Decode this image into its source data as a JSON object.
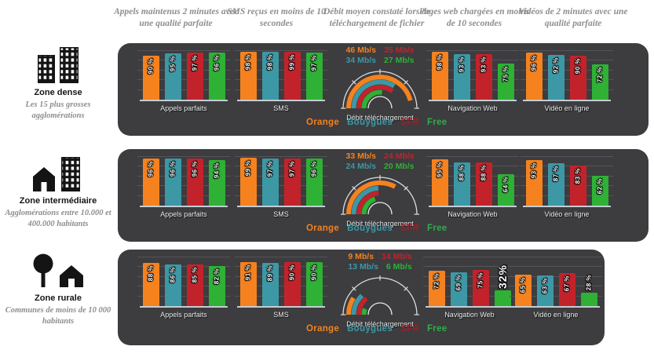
{
  "colors": {
    "orange": "#F5821E",
    "bouygues_teal": "#3D98A6",
    "sfr_red": "#C2232B",
    "free_green": "#2EB135",
    "sfr_legend": "#A51D24",
    "panel_bg": "#3D3C3F",
    "header_text": "#8E8E8E",
    "grid_line": "#54545A",
    "axis_line": "#C3CDD5",
    "label_text": "#E8EBED"
  },
  "operators": [
    "Orange",
    "Bouygues",
    "SFR",
    "Free"
  ],
  "column_headers": [
    "Appels maintenus 2 minutes avec une qualité parfaite",
    "SMS reçus en moins de 10 secondes",
    "Débit moyen constaté lors de téléchargement de fichier",
    "Pages web chargées en moins de 10 secondes",
    "Vidéos de 2 minutes avec une qualité parfaite"
  ],
  "legend": {
    "items": [
      {
        "label": "Orange",
        "color": "#F5821E"
      },
      {
        "label": "Bouygues",
        "color": "#3D98A6"
      },
      {
        "label": "SFR",
        "color": "#A51D24"
      },
      {
        "label": "Free",
        "color": "#2FAE49"
      }
    ]
  },
  "rows": [
    {
      "zone": {
        "title": "Zone dense",
        "subtitle": "Les 15 plus grosses agglomérations",
        "icon": "city-buildings-icon"
      },
      "appels": {
        "label": "Appels parfaits",
        "bars": [
          {
            "v": 90,
            "t": "90 %"
          },
          {
            "v": 95,
            "t": "95 %"
          },
          {
            "v": 97,
            "t": "97 %"
          },
          {
            "v": 96,
            "t": "96 %"
          }
        ]
      },
      "sms": {
        "label": "SMS",
        "bars": [
          {
            "v": 98,
            "t": "98 %"
          },
          {
            "v": 98,
            "t": "98 %"
          },
          {
            "v": 99,
            "t": "99 %"
          },
          {
            "v": 97,
            "t": "97 %"
          }
        ]
      },
      "debit": {
        "label": "Débit téléchargement",
        "speeds": [
          {
            "operator": "Orange",
            "mbps": 46,
            "t": "46 Mb/s"
          },
          {
            "operator": "Bouygues",
            "mbps": 34,
            "t": "34 Mb/s"
          },
          {
            "operator": "SFR",
            "mbps": 35,
            "t": "35 Mb/s"
          },
          {
            "operator": "Free",
            "mbps": 27,
            "t": "27 Mb/s"
          }
        ]
      },
      "nav": {
        "label": "Navigation Web",
        "bars": [
          {
            "v": 98,
            "t": "98 %"
          },
          {
            "v": 93,
            "t": "93 %"
          },
          {
            "v": 93,
            "t": "93 %"
          },
          {
            "v": 75,
            "t": "75 %"
          }
        ]
      },
      "video": {
        "label": "Vidéo en ligne",
        "bars": [
          {
            "v": 96,
            "t": "96 %"
          },
          {
            "v": 92,
            "t": "92 %"
          },
          {
            "v": 90,
            "t": "90 %"
          },
          {
            "v": 72,
            "t": "72 %"
          }
        ]
      }
    },
    {
      "zone": {
        "title": "Zone intermédiaire",
        "subtitle": "Agglomérations entre 10.000 et 400.000 habitants",
        "icon": "house-and-building-icon"
      },
      "appels": {
        "label": "Appels parfaits",
        "bars": [
          {
            "v": 96,
            "t": "96 %"
          },
          {
            "v": 96,
            "t": "96 %"
          },
          {
            "v": 96,
            "t": "96 %"
          },
          {
            "v": 94,
            "t": "94 %"
          }
        ]
      },
      "sms": {
        "label": "SMS",
        "bars": [
          {
            "v": 99,
            "t": "99 %"
          },
          {
            "v": 97,
            "t": "97 %"
          },
          {
            "v": 97,
            "t": "97 %"
          },
          {
            "v": 96,
            "t": "96 %"
          }
        ]
      },
      "debit": {
        "label": "Débit téléchargement",
        "speeds": [
          {
            "operator": "Orange",
            "mbps": 33,
            "t": "33 Mb/s"
          },
          {
            "operator": "Bouygues",
            "mbps": 24,
            "t": "24 Mb/s"
          },
          {
            "operator": "SFR",
            "mbps": 24,
            "t": "24 Mb/s"
          },
          {
            "operator": "Free",
            "mbps": 20,
            "t": "20 Mb/s"
          }
        ]
      },
      "nav": {
        "label": "Navigation Web",
        "bars": [
          {
            "v": 95,
            "t": "95 %"
          },
          {
            "v": 88,
            "t": "88 %"
          },
          {
            "v": 88,
            "t": "88 %"
          },
          {
            "v": 64,
            "t": "64 %"
          }
        ]
      },
      "video": {
        "label": "Vidéo en ligne",
        "bars": [
          {
            "v": 93,
            "t": "93 %"
          },
          {
            "v": 87,
            "t": "87 %"
          },
          {
            "v": 83,
            "t": "83 %"
          },
          {
            "v": 62,
            "t": "62 %"
          }
        ]
      }
    },
    {
      "zone": {
        "title": "Zone rurale",
        "subtitle": "Communes de moins de 10 000 habitants",
        "icon": "tree-and-house-icon"
      },
      "appels": {
        "label": "Appels parfaits",
        "bars": [
          {
            "v": 88,
            "t": "88 %"
          },
          {
            "v": 86,
            "t": "86 %"
          },
          {
            "v": 85,
            "t": "85 %"
          },
          {
            "v": 82,
            "t": "82 %"
          }
        ]
      },
      "sms": {
        "label": "SMS",
        "bars": [
          {
            "v": 91,
            "t": "91 %"
          },
          {
            "v": 89,
            "t": "89 %"
          },
          {
            "v": 90,
            "t": "90 %"
          },
          {
            "v": 90,
            "t": "90 %"
          }
        ]
      },
      "debit": {
        "label": "Débit téléchargement",
        "speeds": [
          {
            "operator": "Orange",
            "mbps": 9,
            "t": "9 Mb/s"
          },
          {
            "operator": "Bouygues",
            "mbps": 13,
            "t": "13 Mb/s"
          },
          {
            "operator": "SFR",
            "mbps": 14,
            "t": "14 Mb/s"
          },
          {
            "operator": "Free",
            "mbps": 6,
            "t": "6 Mb/s"
          }
        ]
      },
      "nav": {
        "label": "Navigation Web",
        "bars": [
          {
            "v": 72,
            "t": "72 %"
          },
          {
            "v": 69,
            "t": "69 %"
          },
          {
            "v": 75,
            "t": "75 %"
          },
          {
            "v": 32,
            "t": "32%",
            "big": true
          }
        ]
      },
      "video": {
        "label": "Vidéo en ligne",
        "bars": [
          {
            "v": 65,
            "t": "65 %"
          },
          {
            "v": 63,
            "t": "63 %"
          },
          {
            "v": 67,
            "t": "67 %"
          },
          {
            "v": 28,
            "t": "28 %"
          }
        ]
      }
    }
  ],
  "chart_data": [
    {
      "type": "bar",
      "zone": "Zone dense",
      "categories": [
        "Orange",
        "Bouygues",
        "SFR",
        "Free"
      ],
      "ylim": [
        0,
        100
      ],
      "legend_position": "bottom-of-row",
      "series": [
        {
          "name": "Appels parfaits (%)",
          "values": [
            90,
            95,
            97,
            96
          ]
        },
        {
          "name": "SMS (%)",
          "values": [
            98,
            98,
            99,
            97
          ]
        },
        {
          "name": "Débit téléchargement (Mb/s)",
          "values": [
            46,
            34,
            35,
            27
          ]
        },
        {
          "name": "Navigation Web (%)",
          "values": [
            98,
            93,
            93,
            75
          ]
        },
        {
          "name": "Vidéo en ligne (%)",
          "values": [
            96,
            92,
            90,
            72
          ]
        }
      ]
    },
    {
      "type": "bar",
      "zone": "Zone intermédiaire",
      "categories": [
        "Orange",
        "Bouygues",
        "SFR",
        "Free"
      ],
      "ylim": [
        0,
        100
      ],
      "legend_position": "bottom-of-row",
      "series": [
        {
          "name": "Appels parfaits (%)",
          "values": [
            96,
            96,
            96,
            94
          ]
        },
        {
          "name": "SMS (%)",
          "values": [
            99,
            97,
            97,
            96
          ]
        },
        {
          "name": "Débit téléchargement (Mb/s)",
          "values": [
            33,
            24,
            24,
            20
          ]
        },
        {
          "name": "Navigation Web (%)",
          "values": [
            95,
            88,
            88,
            64
          ]
        },
        {
          "name": "Vidéo en ligne (%)",
          "values": [
            93,
            87,
            83,
            62
          ]
        }
      ]
    },
    {
      "type": "bar",
      "zone": "Zone rurale",
      "categories": [
        "Orange",
        "Bouygues",
        "SFR",
        "Free"
      ],
      "ylim": [
        0,
        100
      ],
      "legend_position": "bottom-of-row",
      "series": [
        {
          "name": "Appels parfaits (%)",
          "values": [
            88,
            86,
            85,
            82
          ]
        },
        {
          "name": "SMS (%)",
          "values": [
            91,
            89,
            90,
            90
          ]
        },
        {
          "name": "Débit téléchargement (Mb/s)",
          "values": [
            9,
            13,
            14,
            6
          ]
        },
        {
          "name": "Navigation Web (%)",
          "values": [
            72,
            69,
            75,
            32
          ]
        },
        {
          "name": "Vidéo en ligne (%)",
          "values": [
            65,
            63,
            67,
            28
          ]
        }
      ]
    }
  ]
}
